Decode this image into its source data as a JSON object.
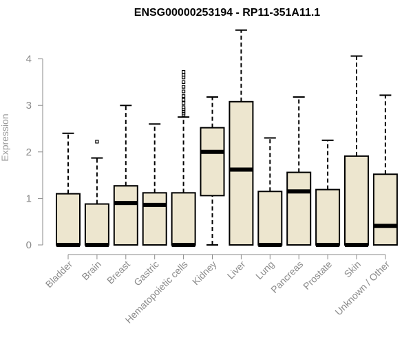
{
  "chart_data": {
    "type": "box",
    "title": "ENSG00000253194 - RP11-351A11.1",
    "xlabel": "",
    "ylabel": "Expression",
    "ylim": [
      0,
      4.6
    ],
    "yticks": [
      0,
      1,
      2,
      3,
      4
    ],
    "ytick_labels": [
      "0",
      "1",
      "2",
      "3",
      "4"
    ],
    "grid": false,
    "legend": "none",
    "colors": {
      "box_fill": "#ede6cf",
      "box_stroke": "#000000",
      "axis": "#8a8a8a",
      "title": "#000000"
    },
    "categories": [
      "Bladder",
      "Brain",
      "Breast",
      "Gastric",
      "Hematopoietic cells",
      "Kidney",
      "Liver",
      "Lung",
      "Pancreas",
      "Prostate",
      "Skin",
      "Unknown / Other"
    ],
    "boxes": [
      {
        "whisker_low": 0,
        "q1": 0,
        "median": 0,
        "q3": 1.1,
        "whisker_high": 2.4,
        "outliers": []
      },
      {
        "whisker_low": 0,
        "q1": 0,
        "median": 0,
        "q3": 0.88,
        "whisker_high": 1.87,
        "outliers": [
          2.22
        ]
      },
      {
        "whisker_low": 0,
        "q1": 0,
        "median": 0.9,
        "q3": 1.27,
        "whisker_high": 3.0,
        "outliers": []
      },
      {
        "whisker_low": 0,
        "q1": 0,
        "median": 0.86,
        "q3": 1.12,
        "whisker_high": 2.6,
        "outliers": []
      },
      {
        "whisker_low": 0,
        "q1": 0,
        "median": 0,
        "q3": 1.12,
        "whisker_high": 2.75,
        "outliers": [
          2.8,
          2.84,
          2.88,
          2.92,
          2.96,
          3.05,
          3.12,
          3.2,
          3.3,
          3.4,
          3.5,
          3.6,
          3.66,
          3.72
        ]
      },
      {
        "whisker_low": 0,
        "q1": 1.06,
        "median": 2.0,
        "q3": 2.52,
        "whisker_high": 3.18,
        "outliers": []
      },
      {
        "whisker_low": 0,
        "q1": 0,
        "median": 1.62,
        "q3": 3.08,
        "whisker_high": 4.62,
        "outliers": []
      },
      {
        "whisker_low": 0,
        "q1": 0,
        "median": 0,
        "q3": 1.15,
        "whisker_high": 2.3,
        "outliers": []
      },
      {
        "whisker_low": 0,
        "q1": 0,
        "median": 1.15,
        "q3": 1.56,
        "whisker_high": 3.18,
        "outliers": []
      },
      {
        "whisker_low": 0,
        "q1": 0,
        "median": 0,
        "q3": 1.19,
        "whisker_high": 2.25,
        "outliers": []
      },
      {
        "whisker_low": 0,
        "q1": 0,
        "median": 0,
        "q3": 1.91,
        "whisker_high": 4.06,
        "outliers": []
      },
      {
        "whisker_low": 0,
        "q1": 0,
        "median": 0.41,
        "q3": 1.52,
        "whisker_high": 3.22,
        "outliers": []
      }
    ]
  }
}
